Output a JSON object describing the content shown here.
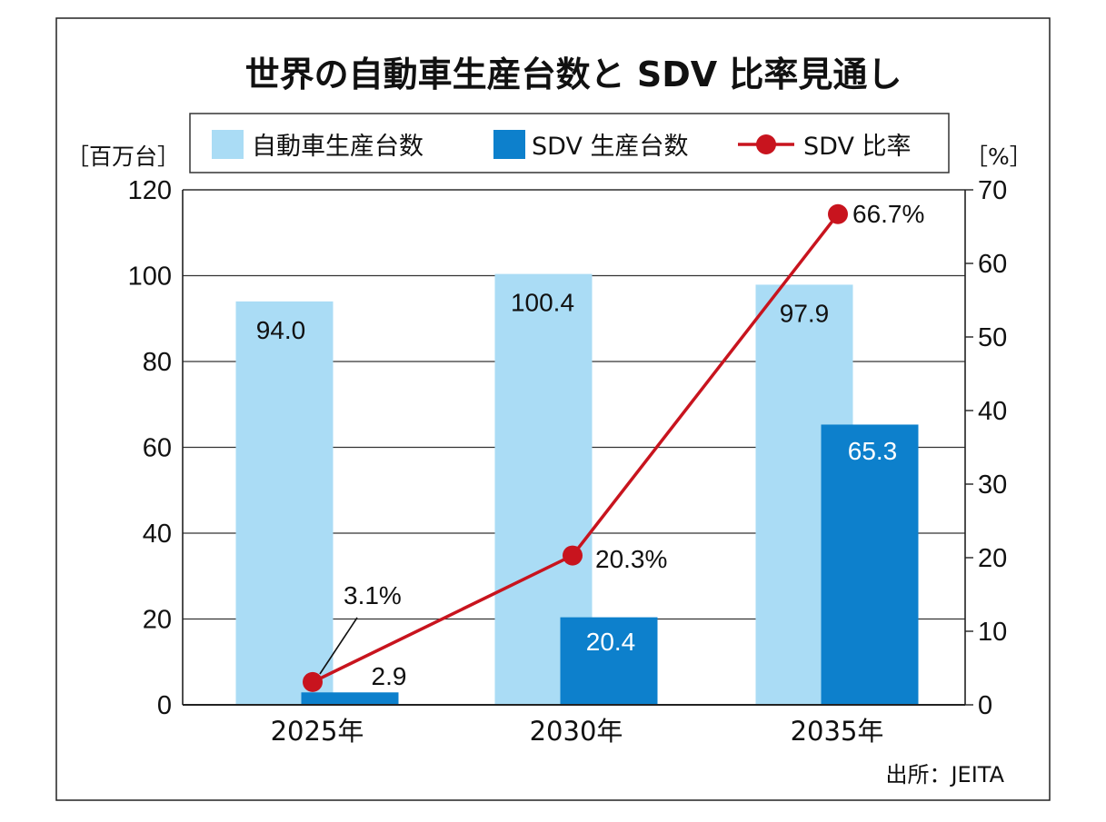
{
  "chart_data": {
    "type": "bar",
    "title": "世界の自動車生産台数と SDV 比率見通し",
    "categories": [
      "2025年",
      "2030年",
      "2035年"
    ],
    "series": [
      {
        "name": "自動車生産台数",
        "kind": "bar",
        "axis": "left",
        "color": "#aadcf5",
        "values": [
          94.0,
          100.4,
          97.9
        ],
        "labels": [
          "94.0",
          "100.4",
          "97.9"
        ]
      },
      {
        "name": "SDV 生産台数",
        "kind": "bar",
        "axis": "left",
        "color": "#0d80cc",
        "values": [
          2.9,
          20.4,
          65.3
        ],
        "labels": [
          "2.9",
          "20.4",
          "65.3"
        ]
      },
      {
        "name": "SDV 比率",
        "kind": "line",
        "axis": "right",
        "color": "#c8141e",
        "values": [
          3.1,
          20.3,
          66.7
        ],
        "labels": [
          "3.1%",
          "20.3%",
          "66.7%"
        ]
      }
    ],
    "y_left": {
      "unit": "［百万台］",
      "ylim": [
        0,
        120
      ],
      "ticks": [
        "0",
        "20",
        "40",
        "60",
        "80",
        "100",
        "120"
      ]
    },
    "y_right": {
      "unit": "［%］",
      "ylim": [
        0,
        70
      ],
      "ticks": [
        "0",
        "10",
        "20",
        "30",
        "40",
        "50",
        "60",
        "70"
      ]
    },
    "grid": true,
    "legend_position": "top",
    "source": "出所：JEITA"
  }
}
